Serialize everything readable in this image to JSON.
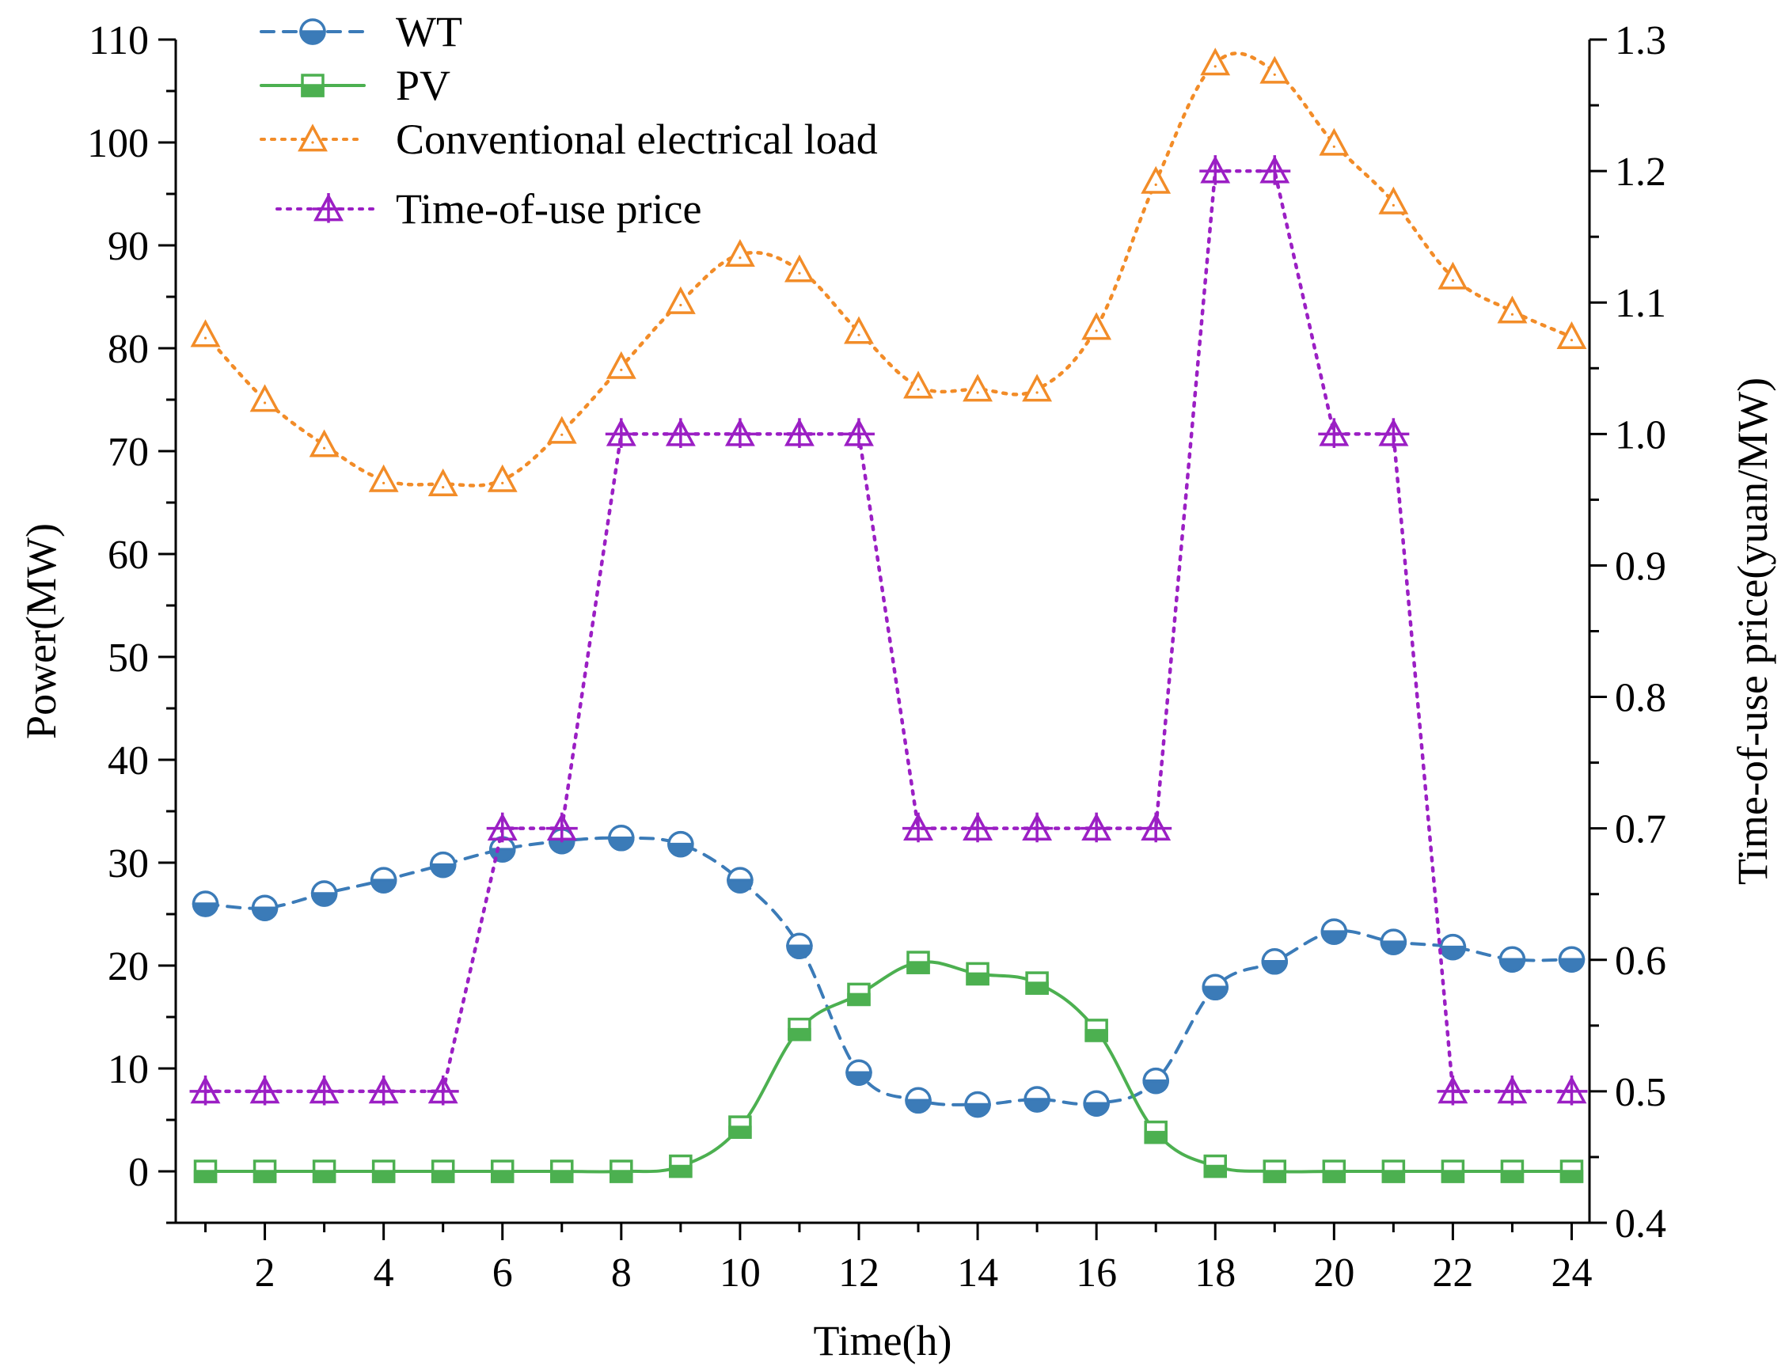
{
  "chart_data": {
    "type": "line",
    "x": [
      1,
      2,
      3,
      4,
      5,
      6,
      7,
      8,
      9,
      10,
      11,
      12,
      13,
      14,
      15,
      16,
      17,
      18,
      19,
      20,
      21,
      22,
      23,
      24
    ],
    "xlabel": "Time(h)",
    "ylabel": "Power(MW)",
    "y2label": "Time-of-use price(yuan/MW)",
    "xlim": [
      0.5,
      24.3
    ],
    "ylim": [
      -5,
      110
    ],
    "y2lim": [
      0.4,
      1.3
    ],
    "xticks": [
      2,
      4,
      6,
      8,
      10,
      12,
      14,
      16,
      18,
      20,
      22,
      24
    ],
    "xtick_labels": [
      "2",
      "4",
      "6",
      "8",
      "10",
      "12",
      "14",
      "16",
      "18",
      "20",
      "22",
      "24"
    ],
    "yticks": [
      0,
      10,
      20,
      30,
      40,
      50,
      60,
      70,
      80,
      90,
      100,
      110
    ],
    "ytick_labels": [
      "0",
      "10",
      "20",
      "30",
      "40",
      "50",
      "60",
      "70",
      "80",
      "90",
      "100",
      "110"
    ],
    "y2ticks": [
      0.4,
      0.5,
      0.6,
      0.7,
      0.8,
      0.9,
      1.0,
      1.1,
      1.2,
      1.3
    ],
    "y2tick_labels": [
      "0.4",
      "0.5",
      "0.6",
      "0.7",
      "0.8",
      "0.9",
      "1.0",
      "1.1",
      "1.2",
      "1.3"
    ],
    "grid": false,
    "legend_position": "top-left",
    "series": [
      {
        "name": "WT",
        "axis": "left",
        "color": "#3b7bb8",
        "line": "dashed",
        "marker": "half-filled-circle",
        "values": [
          26,
          25.6,
          27,
          28.3,
          29.8,
          31.3,
          32.1,
          32.4,
          31.8,
          28.3,
          21.9,
          9.6,
          6.9,
          6.5,
          7.0,
          6.6,
          8.8,
          17.9,
          20.4,
          23.3,
          22.3,
          21.8,
          20.6,
          20.6
        ]
      },
      {
        "name": "PV",
        "axis": "left",
        "color": "#4cb050",
        "line": "solid",
        "marker": "half-filled-square",
        "values": [
          0,
          0,
          0,
          0,
          0,
          0,
          0,
          0,
          0.5,
          4.3,
          13.8,
          17.2,
          20.3,
          19.2,
          18.3,
          13.7,
          3.8,
          0.5,
          0,
          0,
          0,
          0,
          0,
          0
        ]
      },
      {
        "name": "Conventional electrical load",
        "axis": "left",
        "color": "#f28c28",
        "line": "dotted",
        "marker": "open-triangle",
        "values": [
          81.3,
          75,
          70.6,
          67.2,
          66.8,
          67.2,
          71.9,
          78.2,
          84.5,
          89.1,
          87.6,
          81.6,
          76.3,
          76,
          76,
          82,
          96.2,
          107.7,
          106.9,
          99.9,
          94.2,
          86.9,
          83.6,
          81.1
        ]
      },
      {
        "name": "Time-of-use price",
        "axis": "right",
        "color": "#9b1fc4",
        "line": "dotted",
        "marker": "crossed-triangle",
        "values": [
          0.5,
          0.5,
          0.5,
          0.5,
          0.5,
          0.7,
          0.7,
          1.0,
          1.0,
          1.0,
          1.0,
          1.0,
          0.7,
          0.7,
          0.7,
          0.7,
          0.7,
          1.2,
          1.2,
          1.0,
          1.0,
          0.5,
          0.5,
          0.5
        ]
      }
    ]
  }
}
